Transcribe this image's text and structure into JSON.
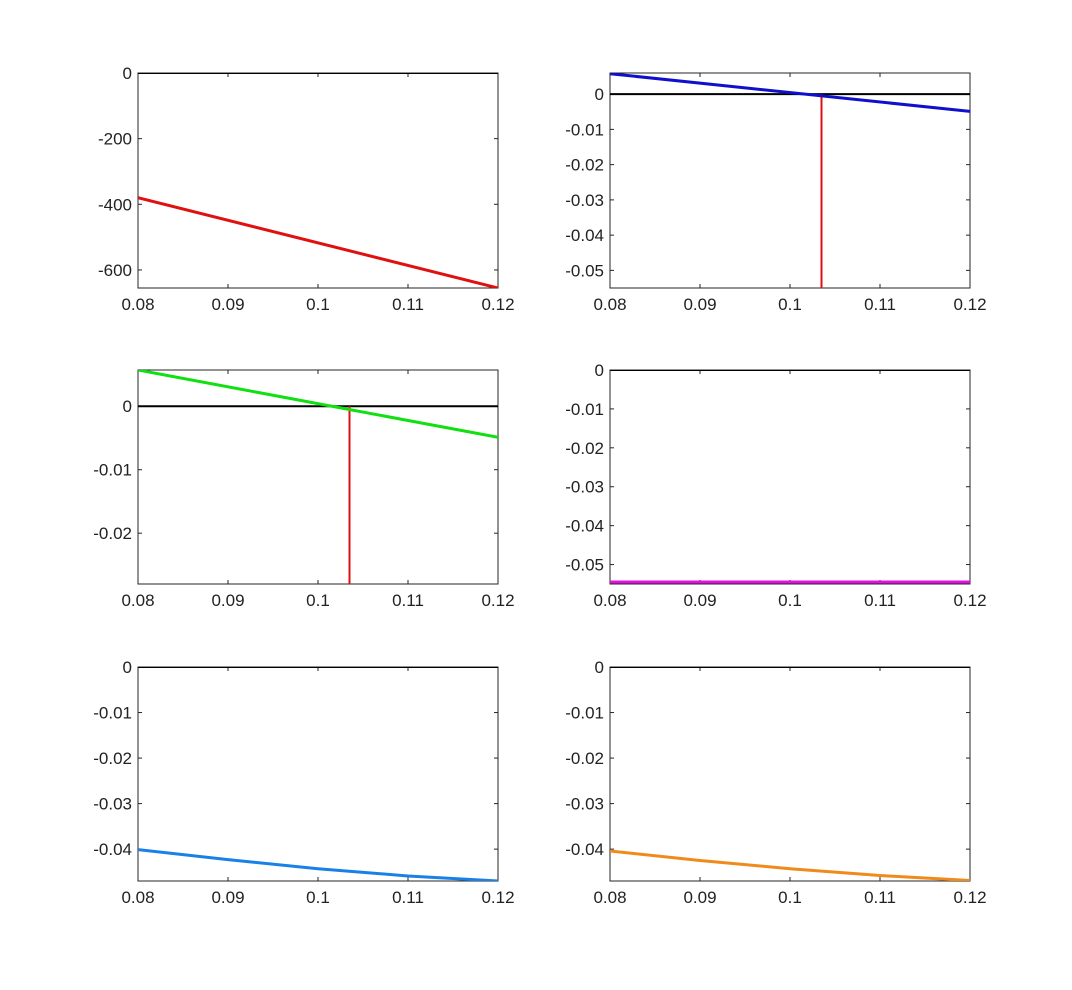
{
  "chart_data": [
    {
      "type": "line",
      "xlim": [
        0.08,
        0.12
      ],
      "ylim": [
        -655,
        0
      ],
      "xticks": [
        0.08,
        0.09,
        0.1,
        0.11,
        0.12
      ],
      "xtick_labels": [
        "0.08",
        "0.09",
        "0.1",
        "0.11",
        "0.12"
      ],
      "yticks": [
        0,
        -200,
        -400,
        -600
      ],
      "ytick_labels": [
        "0",
        "-200",
        "-400",
        "-600"
      ],
      "grid": false,
      "zero_line": true,
      "series": [
        {
          "color": "#e01010",
          "x": [
            0.08,
            0.12
          ],
          "y": [
            -380,
            -655
          ]
        }
      ]
    },
    {
      "type": "line",
      "xlim": [
        0.08,
        0.12
      ],
      "ylim": [
        -0.055,
        0.006
      ],
      "xticks": [
        0.08,
        0.09,
        0.1,
        0.11,
        0.12
      ],
      "xtick_labels": [
        "0.08",
        "0.09",
        "0.1",
        "0.11",
        "0.12"
      ],
      "yticks": [
        0,
        -0.01,
        -0.02,
        -0.03,
        -0.04,
        -0.05
      ],
      "ytick_labels": [
        "0",
        "-0.01",
        "-0.02",
        "-0.03",
        "-0.04",
        "-0.05"
      ],
      "grid": false,
      "zero_line": true,
      "series": [
        {
          "color": "#1010cc",
          "x": [
            0.08,
            0.12
          ],
          "y": [
            0.0058,
            -0.0049
          ]
        }
      ],
      "vlines": [
        {
          "x": 0.1035,
          "color": "#e01010"
        }
      ]
    },
    {
      "type": "line",
      "xlim": [
        0.08,
        0.12
      ],
      "ylim": [
        -0.028,
        0.0057
      ],
      "xticks": [
        0.08,
        0.09,
        0.1,
        0.11,
        0.12
      ],
      "xtick_labels": [
        "0.08",
        "0.09",
        "0.1",
        "0.11",
        "0.12"
      ],
      "yticks": [
        0,
        -0.01,
        -0.02
      ],
      "ytick_labels": [
        "0",
        "-0.01",
        "-0.02"
      ],
      "grid": false,
      "zero_line": true,
      "series": [
        {
          "color": "#10e010",
          "x": [
            0.08,
            0.12
          ],
          "y": [
            0.0057,
            -0.0049
          ]
        }
      ],
      "vlines": [
        {
          "x": 0.1035,
          "color": "#e01010"
        }
      ]
    },
    {
      "type": "line",
      "xlim": [
        0.08,
        0.12
      ],
      "ylim": [
        -0.055,
        0
      ],
      "xticks": [
        0.08,
        0.09,
        0.1,
        0.11,
        0.12
      ],
      "xtick_labels": [
        "0.08",
        "0.09",
        "0.1",
        "0.11",
        "0.12"
      ],
      "yticks": [
        0,
        -0.01,
        -0.02,
        -0.03,
        -0.04,
        -0.05
      ],
      "ytick_labels": [
        "0",
        "-0.01",
        "-0.02",
        "-0.03",
        "-0.04",
        "-0.05"
      ],
      "grid": false,
      "zero_line": true,
      "series": [
        {
          "color": "#e010e0",
          "x": [
            0.08,
            0.12
          ],
          "y": [
            -0.0545,
            -0.0545
          ]
        }
      ]
    },
    {
      "type": "line",
      "xlim": [
        0.08,
        0.12
      ],
      "ylim": [
        -0.047,
        0
      ],
      "xticks": [
        0.08,
        0.09,
        0.1,
        0.11,
        0.12
      ],
      "xtick_labels": [
        "0.08",
        "0.09",
        "0.1",
        "0.11",
        "0.12"
      ],
      "yticks": [
        0,
        -0.01,
        -0.02,
        -0.03,
        -0.04
      ],
      "ytick_labels": [
        "0",
        "-0.01",
        "-0.02",
        "-0.03",
        "-0.04"
      ],
      "grid": false,
      "zero_line": true,
      "series": [
        {
          "color": "#1a80e8",
          "x": [
            0.08,
            0.09,
            0.1,
            0.11,
            0.12
          ],
          "y": [
            -0.0401,
            -0.0423,
            -0.0443,
            -0.0459,
            -0.047
          ]
        }
      ]
    },
    {
      "type": "line",
      "xlim": [
        0.08,
        0.12
      ],
      "ylim": [
        -0.047,
        0
      ],
      "xticks": [
        0.08,
        0.09,
        0.1,
        0.11,
        0.12
      ],
      "xtick_labels": [
        "0.08",
        "0.09",
        "0.1",
        "0.11",
        "0.12"
      ],
      "yticks": [
        0,
        -0.01,
        -0.02,
        -0.03,
        -0.04
      ],
      "ytick_labels": [
        "0",
        "-0.01",
        "-0.02",
        "-0.03",
        "-0.04"
      ],
      "grid": false,
      "zero_line": true,
      "series": [
        {
          "color": "#f08a1a",
          "x": [
            0.08,
            0.09,
            0.1,
            0.11,
            0.12
          ],
          "y": [
            -0.0404,
            -0.0425,
            -0.0443,
            -0.0458,
            -0.0469
          ]
        }
      ]
    }
  ]
}
